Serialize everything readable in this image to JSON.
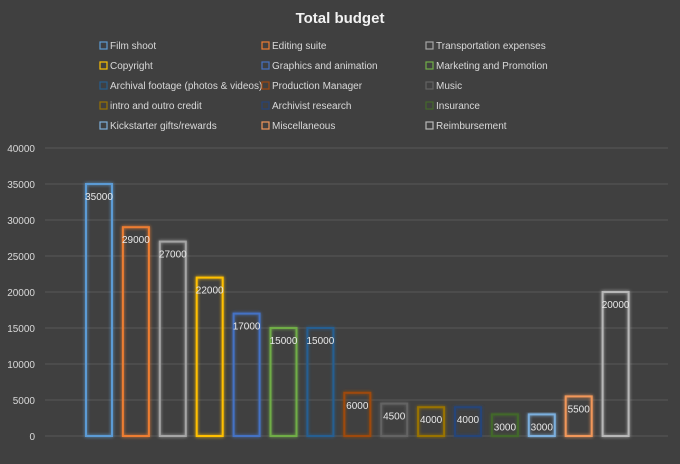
{
  "chart_data": {
    "type": "bar",
    "title": "Total budget",
    "categories": [
      "Film shoot",
      "Editing suite",
      "Transportation expenses",
      "Copyright",
      "Graphics and animation",
      "Marketing and Promotion",
      "Archival footage (photos & videos)",
      "Production Manager",
      "Music",
      "intro and outro credit",
      "Archivist research",
      "Insurance",
      "Kickstarter gifts/rewards",
      "Miscellaneous",
      "Reimbursement"
    ],
    "values": [
      35000,
      29000,
      27000,
      22000,
      17000,
      15000,
      15000,
      6000,
      4500,
      4000,
      4000,
      3000,
      3000,
      5500,
      20000
    ],
    "colors": [
      "#5b9bd5",
      "#ed7d31",
      "#a5a5a5",
      "#ffc000",
      "#4472c4",
      "#70ad47",
      "#255e91",
      "#9e480e",
      "#636363",
      "#997300",
      "#264478",
      "#43682b",
      "#7cafdd",
      "#f1975a",
      "#b7b7b7"
    ],
    "ylim": [
      0,
      40000
    ],
    "yticks": [
      0,
      5000,
      10000,
      15000,
      20000,
      25000,
      30000,
      35000,
      40000
    ],
    "grid": true,
    "legend": "top",
    "bar_style": "outlined with glow"
  }
}
